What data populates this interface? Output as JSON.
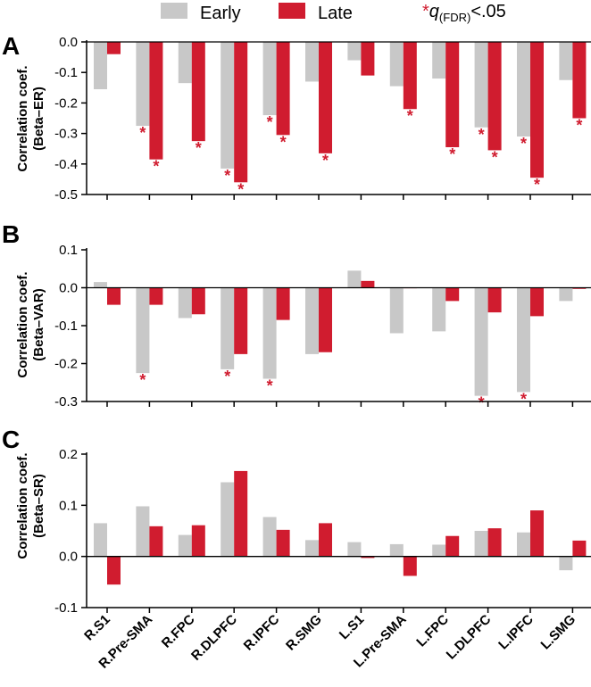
{
  "chart_data": [
    {
      "panel": "A",
      "type": "bar",
      "ylabel_line1": "Correlation coef.",
      "ylabel_line2": "(Beta–ER)",
      "ylim": [
        -0.5,
        0.0
      ],
      "yticks": [
        0.0,
        -0.1,
        -0.2,
        -0.3,
        -0.4,
        -0.5
      ],
      "ytick_labels": [
        "0.0",
        "-0.1",
        "-0.2",
        "-0.3",
        "-0.4",
        "-0.5"
      ],
      "categories": [
        "R.S1",
        "R.Pre-SMA",
        "R.FPC",
        "R.DLPFC",
        "R.IPFC",
        "R.SMG",
        "L.S1",
        "L.Pre-SMA",
        "L.FPC",
        "L.DLPFC",
        "L.IPFC",
        "L.SMG"
      ],
      "series": [
        {
          "name": "Early",
          "values": [
            -0.155,
            -0.275,
            -0.135,
            -0.415,
            -0.24,
            -0.13,
            -0.06,
            -0.145,
            -0.12,
            -0.28,
            -0.31,
            -0.125
          ],
          "sig": [
            false,
            true,
            false,
            true,
            true,
            false,
            false,
            false,
            false,
            true,
            true,
            false
          ]
        },
        {
          "name": "Late",
          "values": [
            -0.04,
            -0.385,
            -0.325,
            -0.46,
            -0.305,
            -0.365,
            -0.11,
            -0.22,
            -0.345,
            -0.355,
            -0.445,
            -0.25
          ],
          "sig": [
            false,
            true,
            true,
            true,
            true,
            true,
            false,
            true,
            true,
            true,
            true,
            true
          ]
        }
      ]
    },
    {
      "panel": "B",
      "type": "bar",
      "ylabel_line1": "Correlation coef.",
      "ylabel_line2": "(Beta–VAR)",
      "ylim": [
        -0.3,
        0.1
      ],
      "yticks": [
        0.1,
        0.0,
        -0.1,
        -0.2,
        -0.3
      ],
      "ytick_labels": [
        "0.1",
        "0.0",
        "-0.1",
        "-0.2",
        "-0.3"
      ],
      "categories": [
        "R.S1",
        "R.Pre-SMA",
        "R.FPC",
        "R.DLPFC",
        "R.IPFC",
        "R.SMG",
        "L.S1",
        "L.Pre-SMA",
        "L.FPC",
        "L.DLPFC",
        "L.IPFC",
        "L.SMG"
      ],
      "series": [
        {
          "name": "Early",
          "values": [
            0.015,
            -0.225,
            -0.08,
            -0.215,
            -0.24,
            -0.175,
            0.045,
            -0.12,
            -0.115,
            -0.285,
            -0.275,
            -0.035
          ],
          "sig": [
            false,
            true,
            false,
            true,
            true,
            false,
            false,
            false,
            false,
            true,
            true,
            false
          ]
        },
        {
          "name": "Late",
          "values": [
            -0.045,
            -0.045,
            -0.07,
            -0.175,
            -0.085,
            -0.17,
            0.018,
            0.0,
            -0.035,
            -0.065,
            -0.075,
            -0.003
          ],
          "sig": [
            false,
            false,
            false,
            false,
            false,
            false,
            false,
            false,
            false,
            false,
            false,
            false
          ]
        }
      ]
    },
    {
      "panel": "C",
      "type": "bar",
      "ylabel_line1": "Correlation coef.",
      "ylabel_line2": "(Beta–SR)",
      "ylim": [
        -0.1,
        0.2
      ],
      "yticks": [
        0.2,
        0.1,
        0.0,
        -0.1
      ],
      "ytick_labels": [
        "0.2",
        "0.1",
        "0.0",
        "-0.1"
      ],
      "categories": [
        "R.S1",
        "R.Pre-SMA",
        "R.FPC",
        "R.DLPFC",
        "R.IPFC",
        "R.SMG",
        "L.S1",
        "L.Pre-SMA",
        "L.FPC",
        "L.DLPFC",
        "L.IPFC",
        "L.SMG"
      ],
      "series": [
        {
          "name": "Early",
          "values": [
            0.065,
            0.098,
            0.042,
            0.145,
            0.077,
            0.032,
            0.028,
            0.024,
            0.023,
            0.05,
            0.047,
            -0.027
          ],
          "sig": [
            false,
            false,
            false,
            false,
            false,
            false,
            false,
            false,
            false,
            false,
            false,
            false
          ]
        },
        {
          "name": "Late",
          "values": [
            -0.055,
            0.059,
            0.061,
            0.167,
            0.052,
            0.065,
            -0.003,
            -0.038,
            0.04,
            0.055,
            0.09,
            0.031
          ],
          "sig": [
            false,
            false,
            false,
            false,
            false,
            false,
            false,
            false,
            false,
            false,
            false,
            false
          ]
        }
      ]
    }
  ],
  "legend": {
    "early_label": "Early",
    "late_label": "Late",
    "sig_star": "*",
    "sig_q": "q",
    "sig_sub": "(FDR)",
    "sig_thresh": "<.05"
  },
  "colors": {
    "early": "#c8c8c8",
    "late": "#d01c2f",
    "axis": "#000000",
    "star": "#d01c2f"
  }
}
